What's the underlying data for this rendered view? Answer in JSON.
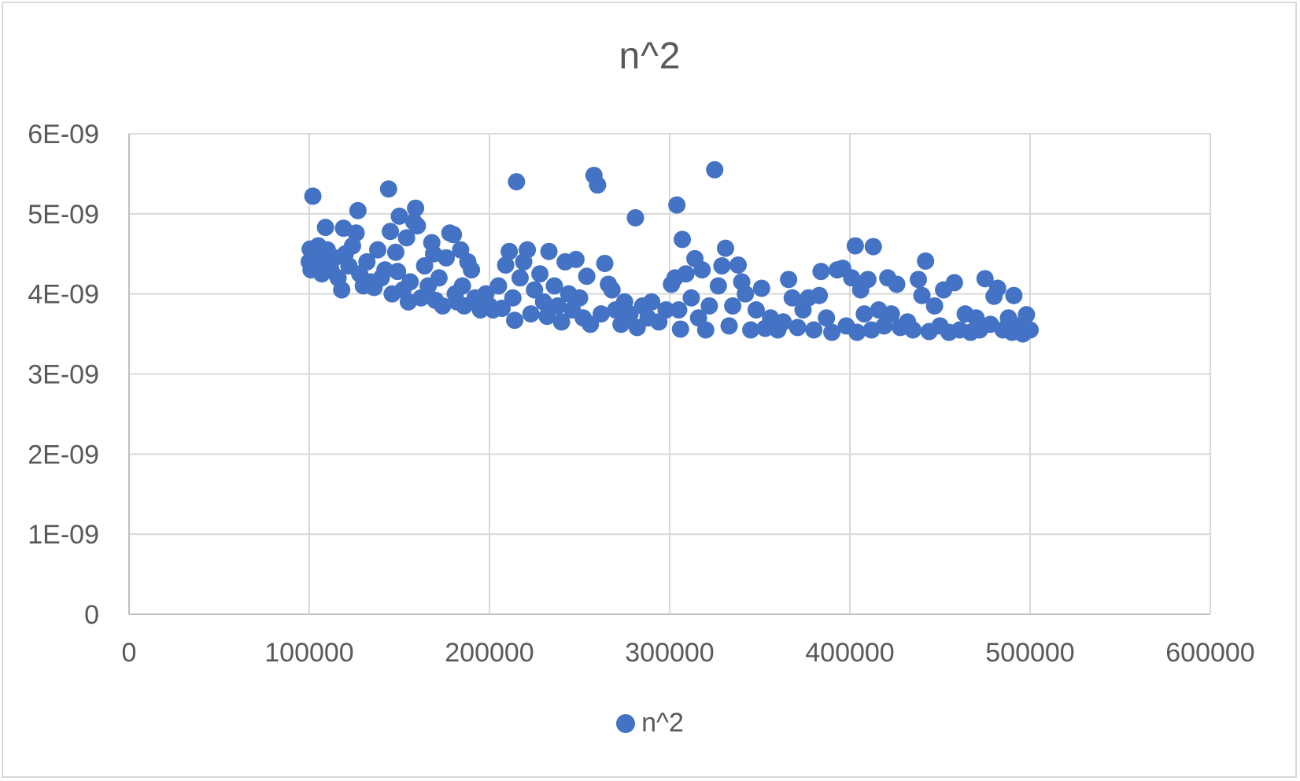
{
  "chart_data": {
    "type": "scatter",
    "title": "n^2",
    "xlabel": "",
    "ylabel": "",
    "xlim": [
      0,
      600000
    ],
    "ylim": [
      0,
      6e-09
    ],
    "x_ticks": [
      "0",
      "100000",
      "200000",
      "300000",
      "400000",
      "500000",
      "600000"
    ],
    "y_ticks": [
      "0",
      "1E-09",
      "2E-09",
      "3E-09",
      "4E-09",
      "5E-09",
      "6E-09"
    ],
    "grid": true,
    "legend": "bottom",
    "color": "#4472C4",
    "series": [
      {
        "name": "n^2",
        "points": [
          [
            100000,
            4.4e-09
          ],
          [
            100500,
            4.56e-09
          ],
          [
            101000,
            4.3e-09
          ],
          [
            102000,
            5.22e-09
          ],
          [
            103000,
            4.45e-09
          ],
          [
            104000,
            4.35e-09
          ],
          [
            105000,
            4.6e-09
          ],
          [
            106000,
            4.5e-09
          ],
          [
            107000,
            4.25e-09
          ],
          [
            108000,
            4.4e-09
          ],
          [
            109000,
            4.83e-09
          ],
          [
            110000,
            4.55e-09
          ],
          [
            112000,
            4.3e-09
          ],
          [
            114000,
            4.45e-09
          ],
          [
            116000,
            4.2e-09
          ],
          [
            118000,
            4.05e-09
          ],
          [
            119000,
            4.82e-09
          ],
          [
            120000,
            4.5e-09
          ],
          [
            122000,
            4.35e-09
          ],
          [
            124000,
            4.6e-09
          ],
          [
            126000,
            4.76e-09
          ],
          [
            127000,
            5.04e-09
          ],
          [
            128000,
            4.25e-09
          ],
          [
            130000,
            4.1e-09
          ],
          [
            132000,
            4.4e-09
          ],
          [
            134000,
            4.15e-09
          ],
          [
            136000,
            4.08e-09
          ],
          [
            138000,
            4.55e-09
          ],
          [
            140000,
            4.2e-09
          ],
          [
            142000,
            4.3e-09
          ],
          [
            144000,
            5.31e-09
          ],
          [
            145000,
            4.78e-09
          ],
          [
            146000,
            4e-09
          ],
          [
            148000,
            4.52e-09
          ],
          [
            149000,
            4.28e-09
          ],
          [
            150000,
            4.97e-09
          ],
          [
            152000,
            4.05e-09
          ],
          [
            154000,
            4.7e-09
          ],
          [
            155000,
            3.9e-09
          ],
          [
            156000,
            4.15e-09
          ],
          [
            158000,
            4.9e-09
          ],
          [
            159000,
            5.07e-09
          ],
          [
            160000,
            4.85e-09
          ],
          [
            162000,
            3.95e-09
          ],
          [
            164000,
            4.35e-09
          ],
          [
            166000,
            4.1e-09
          ],
          [
            168000,
            4.64e-09
          ],
          [
            169000,
            4.5e-09
          ],
          [
            170000,
            3.92e-09
          ],
          [
            172000,
            4.2e-09
          ],
          [
            174000,
            3.85e-09
          ],
          [
            176000,
            4.45e-09
          ],
          [
            178000,
            4.76e-09
          ],
          [
            180000,
            4.74e-09
          ],
          [
            181000,
            4e-09
          ],
          [
            182000,
            3.9e-09
          ],
          [
            184000,
            4.55e-09
          ],
          [
            185000,
            4.1e-09
          ],
          [
            186000,
            3.85e-09
          ],
          [
            188000,
            4.4e-09
          ],
          [
            190000,
            4.3e-09
          ],
          [
            192000,
            3.95e-09
          ],
          [
            195000,
            3.8e-09
          ],
          [
            198000,
            4e-09
          ],
          [
            200000,
            3.85e-09
          ],
          [
            202000,
            3.8e-09
          ],
          [
            205000,
            4.1e-09
          ],
          [
            207000,
            3.82e-09
          ],
          [
            209000,
            4.36e-09
          ],
          [
            211000,
            4.53e-09
          ],
          [
            213000,
            3.95e-09
          ],
          [
            214000,
            3.67e-09
          ],
          [
            215000,
            5.4e-09
          ],
          [
            217000,
            4.2e-09
          ],
          [
            219000,
            4.4e-09
          ],
          [
            221000,
            4.55e-09
          ],
          [
            223000,
            3.75e-09
          ],
          [
            225000,
            4.05e-09
          ],
          [
            228000,
            4.25e-09
          ],
          [
            230000,
            3.9e-09
          ],
          [
            232000,
            3.72e-09
          ],
          [
            233000,
            4.53e-09
          ],
          [
            236000,
            4.1e-09
          ],
          [
            238000,
            3.85e-09
          ],
          [
            240000,
            3.65e-09
          ],
          [
            242000,
            4.4e-09
          ],
          [
            244000,
            4e-09
          ],
          [
            246000,
            3.8e-09
          ],
          [
            248000,
            4.43e-09
          ],
          [
            250000,
            3.95e-09
          ],
          [
            252000,
            3.7e-09
          ],
          [
            254000,
            4.22e-09
          ],
          [
            256000,
            3.62e-09
          ],
          [
            258000,
            5.48e-09
          ],
          [
            260000,
            5.36e-09
          ],
          [
            262000,
            3.75e-09
          ],
          [
            264000,
            4.38e-09
          ],
          [
            266000,
            4.12e-09
          ],
          [
            268000,
            4.05e-09
          ],
          [
            270000,
            3.8e-09
          ],
          [
            273000,
            3.62e-09
          ],
          [
            275000,
            3.9e-09
          ],
          [
            278000,
            3.75e-09
          ],
          [
            281000,
            4.95e-09
          ],
          [
            282000,
            3.58e-09
          ],
          [
            285000,
            3.85e-09
          ],
          [
            288000,
            3.7e-09
          ],
          [
            290000,
            3.9e-09
          ],
          [
            294000,
            3.65e-09
          ],
          [
            298000,
            3.8e-09
          ],
          [
            301000,
            4.12e-09
          ],
          [
            303000,
            4.2e-09
          ],
          [
            304000,
            5.11e-09
          ],
          [
            305000,
            3.8e-09
          ],
          [
            306000,
            3.56e-09
          ],
          [
            307000,
            4.68e-09
          ],
          [
            309000,
            4.25e-09
          ],
          [
            312000,
            3.95e-09
          ],
          [
            314000,
            4.44e-09
          ],
          [
            316000,
            3.7e-09
          ],
          [
            318000,
            4.3e-09
          ],
          [
            320000,
            3.55e-09
          ],
          [
            322000,
            3.85e-09
          ],
          [
            325000,
            5.55e-09
          ],
          [
            327000,
            4.1e-09
          ],
          [
            329000,
            4.35e-09
          ],
          [
            331000,
            4.57e-09
          ],
          [
            333000,
            3.6e-09
          ],
          [
            335000,
            3.85e-09
          ],
          [
            338000,
            4.36e-09
          ],
          [
            340000,
            4.15e-09
          ],
          [
            342000,
            4e-09
          ],
          [
            345000,
            3.55e-09
          ],
          [
            348000,
            3.8e-09
          ],
          [
            351000,
            4.07e-09
          ],
          [
            353000,
            3.57e-09
          ],
          [
            356000,
            3.7e-09
          ],
          [
            360000,
            3.55e-09
          ],
          [
            363000,
            3.65e-09
          ],
          [
            366000,
            4.18e-09
          ],
          [
            368000,
            3.95e-09
          ],
          [
            371000,
            3.58e-09
          ],
          [
            374000,
            3.8e-09
          ],
          [
            377000,
            3.95e-09
          ],
          [
            380000,
            3.55e-09
          ],
          [
            383000,
            3.98e-09
          ],
          [
            384000,
            4.28e-09
          ],
          [
            387000,
            3.7e-09
          ],
          [
            390000,
            3.52e-09
          ],
          [
            393000,
            4.3e-09
          ],
          [
            396000,
            4.32e-09
          ],
          [
            398000,
            3.6e-09
          ],
          [
            401000,
            4.2e-09
          ],
          [
            403000,
            4.6e-09
          ],
          [
            404000,
            3.52e-09
          ],
          [
            406000,
            4.05e-09
          ],
          [
            408000,
            3.75e-09
          ],
          [
            410000,
            4.18e-09
          ],
          [
            412000,
            3.55e-09
          ],
          [
            413000,
            4.59e-09
          ],
          [
            416000,
            3.8e-09
          ],
          [
            419000,
            3.6e-09
          ],
          [
            421000,
            4.2e-09
          ],
          [
            423000,
            3.75e-09
          ],
          [
            426000,
            4.12e-09
          ],
          [
            428000,
            3.58e-09
          ],
          [
            432000,
            3.65e-09
          ],
          [
            435000,
            3.55e-09
          ],
          [
            438000,
            4.18e-09
          ],
          [
            440000,
            3.98e-09
          ],
          [
            442000,
            4.41e-09
          ],
          [
            444000,
            3.53e-09
          ],
          [
            447000,
            3.85e-09
          ],
          [
            450000,
            3.6e-09
          ],
          [
            452000,
            4.05e-09
          ],
          [
            455000,
            3.52e-09
          ],
          [
            458000,
            4.14e-09
          ],
          [
            461000,
            3.55e-09
          ],
          [
            464000,
            3.75e-09
          ],
          [
            467000,
            3.52e-09
          ],
          [
            470000,
            3.7e-09
          ],
          [
            472000,
            3.55e-09
          ],
          [
            475000,
            4.19e-09
          ],
          [
            478000,
            3.62e-09
          ],
          [
            480000,
            3.97e-09
          ],
          [
            482000,
            4.07e-09
          ],
          [
            485000,
            3.55e-09
          ],
          [
            488000,
            3.7e-09
          ],
          [
            490000,
            3.52e-09
          ],
          [
            491000,
            3.98e-09
          ],
          [
            493000,
            3.6e-09
          ],
          [
            496000,
            3.5e-09
          ],
          [
            498000,
            3.74e-09
          ],
          [
            500000,
            3.55e-09
          ]
        ]
      }
    ]
  }
}
